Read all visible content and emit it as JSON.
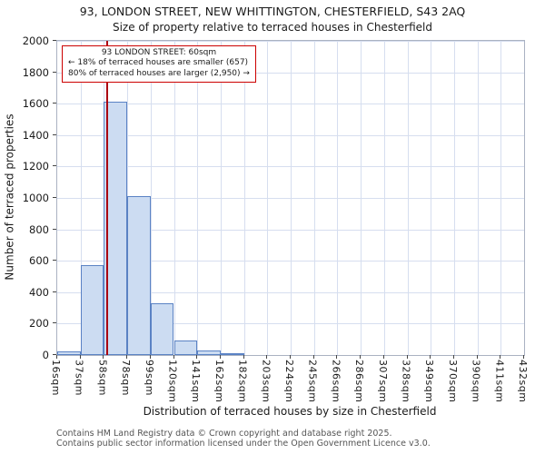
{
  "chart_data": {
    "type": "bar",
    "title": "93, LONDON STREET, NEW WHITTINGTON, CHESTERFIELD, S43 2AQ",
    "subtitle": "Size of property relative to terraced houses in Chesterfield",
    "xlabel": "Distribution of terraced houses by size in Chesterfield",
    "ylabel": "Number of terraced properties",
    "categories": [
      "16sqm",
      "37sqm",
      "58sqm",
      "78sqm",
      "99sqm",
      "120sqm",
      "141sqm",
      "162sqm",
      "182sqm",
      "203sqm",
      "224sqm",
      "245sqm",
      "266sqm",
      "286sqm",
      "307sqm",
      "328sqm",
      "349sqm",
      "370sqm",
      "390sqm",
      "411sqm",
      "432sqm"
    ],
    "values": [
      25,
      570,
      1610,
      1010,
      330,
      90,
      30,
      10,
      0,
      0,
      0,
      0,
      0,
      0,
      0,
      0,
      0,
      0,
      0,
      0
    ],
    "x_numeric": {
      "min": 16,
      "max": 432
    },
    "ylim": [
      0,
      2000
    ],
    "yticks": [
      0,
      200,
      400,
      600,
      800,
      1000,
      1200,
      1400,
      1600,
      1800,
      2000
    ],
    "grid": true,
    "legend": null,
    "marker": {
      "label": "93 LONDON STREET",
      "value_sqm": 60
    },
    "annotation": {
      "lines": [
        "93 LONDON STREET: 60sqm",
        "← 18% of terraced houses are smaller (657)",
        "80% of terraced houses are larger (2,950) →"
      ]
    },
    "colors": {
      "bar_fill": "#ccdcf2",
      "bar_edge": "#5a82c4",
      "grid": "#d6deef",
      "marker_line": "#aa0011",
      "annotation_border": "#cc0000"
    },
    "footer": [
      "Contains HM Land Registry data © Crown copyright and database right 2025.",
      "Contains public sector information licensed under the Open Government Licence v3.0."
    ]
  }
}
